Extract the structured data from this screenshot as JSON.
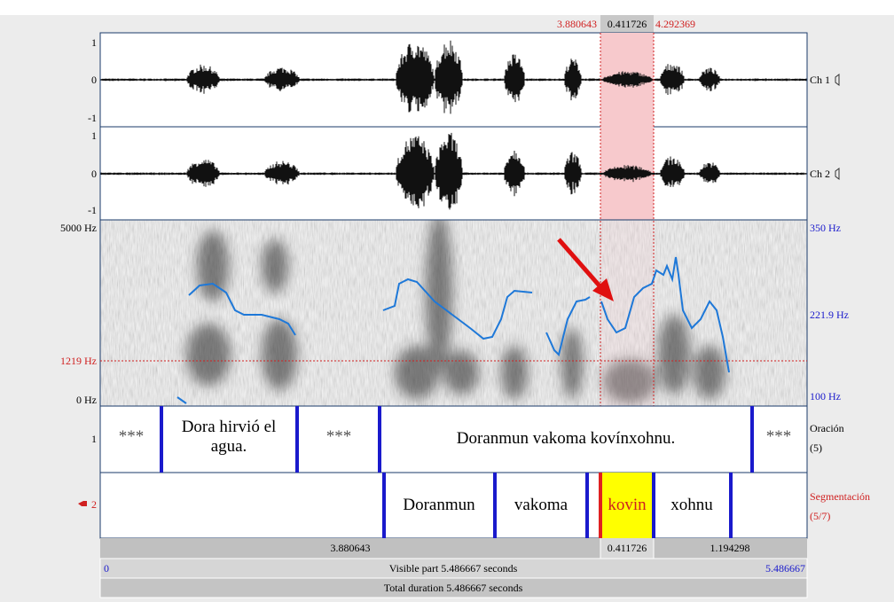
{
  "selection": {
    "start": "3.880643",
    "length": "0.411726",
    "end": "4.292369"
  },
  "channels": [
    {
      "ticks": [
        "1",
        "0",
        "-1"
      ],
      "name": "Ch 1"
    },
    {
      "ticks": [
        "1",
        "0",
        "-1"
      ],
      "name": "Ch 2"
    }
  ],
  "spectrogram": {
    "left_labels": [
      "5000 Hz",
      "1219 Hz",
      "0 Hz"
    ],
    "right_labels": [
      "350 Hz",
      "221.9 Hz",
      "100 Hz"
    ]
  },
  "tiers": [
    {
      "number": "1",
      "name": "Oración",
      "count": "(5)",
      "intervals": [
        "***",
        "Dora hirvió el agua.",
        "***",
        "Doranmun vakoma kovínxohnu.",
        "***"
      ]
    },
    {
      "number": "2",
      "name": "Segmentación",
      "count": "(5/7)",
      "intervals": [
        "Doranmun",
        "vakoma",
        "kovin",
        "xohnu"
      ]
    }
  ],
  "footer": {
    "row1": [
      "3.880643",
      "0.411726",
      "1.194298"
    ],
    "visible_start": "0",
    "visible": "Visible part 5.486667 seconds",
    "visible_end": "5.486667",
    "total": "Total duration 5.486667 seconds"
  }
}
